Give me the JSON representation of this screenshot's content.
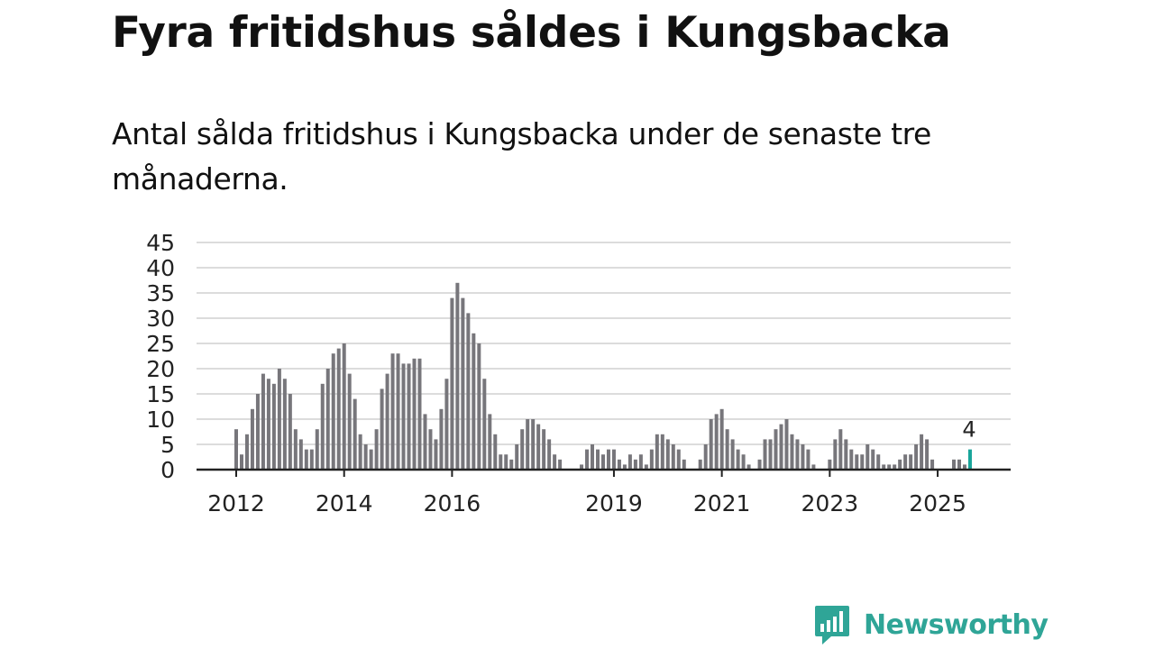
{
  "header": {
    "title": "Fyra fritidshus såldes i Kungsbacka",
    "subtitle": "Antal sålda fritidshus i Kungsbacka under de senaste tre månaderna."
  },
  "brand": {
    "name": "Newsworthy"
  },
  "colors": {
    "bar": "#77767b",
    "highlight": "#18a59a",
    "grid": "#dcdcdc",
    "axis": "#222222",
    "brand": "#2fa597"
  },
  "chart_data": {
    "type": "bar",
    "title": "Fyra fritidshus såldes i Kungsbacka",
    "subtitle": "Antal sålda fritidshus i Kungsbacka under de senaste tre månaderna.",
    "xlabel": "",
    "ylabel": "",
    "ylim": [
      0,
      45
    ],
    "yticks": [
      0,
      5,
      10,
      15,
      20,
      25,
      30,
      35,
      40,
      45
    ],
    "yticks_labels": [
      "0",
      "5",
      "10",
      "15",
      "20",
      "25",
      "30",
      "35",
      "40",
      "45"
    ],
    "grid": true,
    "xticks": [
      {
        "label": "2012",
        "index": 0
      },
      {
        "label": "2014",
        "index": 20
      },
      {
        "label": "2016",
        "index": 40
      },
      {
        "label": "2019",
        "index": 70
      },
      {
        "label": "2021",
        "index": 90
      },
      {
        "label": "2023",
        "index": 110
      },
      {
        "label": "2025",
        "index": 130
      }
    ],
    "annotation": {
      "index": 136,
      "text": "4"
    },
    "highlight_index": 136,
    "series": [
      {
        "name": "Antal sålda fritidshus",
        "values": [
          8,
          3,
          7,
          12,
          15,
          19,
          18,
          17,
          20,
          18,
          15,
          8,
          6,
          4,
          4,
          8,
          17,
          20,
          23,
          24,
          25,
          19,
          14,
          7,
          5,
          4,
          8,
          16,
          19,
          23,
          23,
          21,
          21,
          22,
          22,
          11,
          8,
          6,
          12,
          18,
          34,
          37,
          34,
          31,
          27,
          25,
          18,
          11,
          7,
          3,
          3,
          2,
          5,
          8,
          10,
          10,
          9,
          8,
          6,
          3,
          2,
          0,
          0,
          0,
          1,
          4,
          5,
          4,
          3,
          4,
          4,
          2,
          1,
          3,
          2,
          3,
          1,
          4,
          7,
          7,
          6,
          5,
          4,
          2,
          0,
          0,
          2,
          5,
          10,
          11,
          12,
          8,
          6,
          4,
          3,
          1,
          0,
          2,
          6,
          6,
          8,
          9,
          10,
          7,
          6,
          5,
          4,
          1,
          0,
          0,
          2,
          6,
          8,
          6,
          4,
          3,
          3,
          5,
          4,
          3,
          1,
          1,
          1,
          2,
          3,
          3,
          5,
          7,
          6,
          2,
          0,
          0,
          0,
          2,
          2,
          1,
          4
        ]
      }
    ]
  }
}
